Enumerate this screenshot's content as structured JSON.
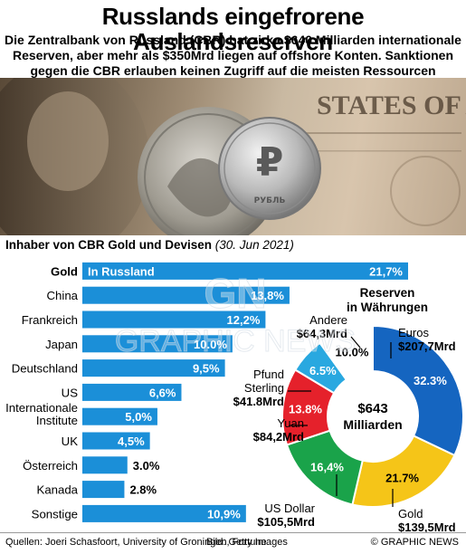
{
  "header": {
    "title": "Russlands eingefrorene Auslandsreserven",
    "subtitle": "Die Zentralbank von Russland (CBR) hat zirka $640 Milliarden internationale Reserven, aber mehr als $350Mrd liegen auf offshore Konten. Sanktionen gegen die CBR erlauben keinen Zugriff auf die meisten Ressourcen"
  },
  "photo": {
    "coin_label": "РУБЛЬ",
    "banknote_text": "STATES OF AMERICA"
  },
  "bar_section": {
    "heading": "Inhaber von CBR Gold und Devisen",
    "date": "(30. Jun 2021)"
  },
  "pie_section": {
    "title_line1": "Reserven",
    "title_line2": "in Währungen",
    "center_line1": "$643",
    "center_line2": "Milliarden"
  },
  "chart_data": [
    {
      "type": "bar",
      "title": "Inhaber von CBR Gold und Devisen",
      "subtitle": "(30. Jun 2021)",
      "orientation": "horizontal",
      "categories": [
        "Gold",
        "China",
        "Frankreich",
        "Japan",
        "Deutschland",
        "US",
        "Internationale Institute",
        "UK",
        "Österreich",
        "Kanada",
        "Sonstige"
      ],
      "values": [
        21.7,
        13.8,
        12.2,
        10.0,
        9.5,
        6.6,
        5.0,
        4.5,
        3.0,
        2.8,
        10.9
      ],
      "value_labels": [
        "21,7%",
        "13,8%",
        "12,2%",
        "10.0%",
        "9,5%",
        "6,6%",
        "5,0%",
        "4,5%",
        "3.0%",
        "2.8%",
        "10,9%"
      ],
      "bar_inner_label": "In Russland",
      "unit": "%",
      "color": "#1b8fd8"
    },
    {
      "type": "pie",
      "title": "Reserven in Währungen",
      "total": "$643 Milliarden",
      "slices": [
        {
          "name": "Euros",
          "amount": "$207,7Mrd",
          "value": 32.3,
          "label": "32.3%",
          "color": "#1565c0"
        },
        {
          "name": "Gold",
          "amount": "$139,5Mrd",
          "value": 21.7,
          "label": "21.7%",
          "color": "#f5c518"
        },
        {
          "name": "US Dollar",
          "amount": "$105,5Mrd",
          "value": 16.4,
          "label": "16,4%",
          "color": "#1aa34a"
        },
        {
          "name": "Yuan",
          "amount": "$84,2Mrd",
          "value": 13.8,
          "label": "13.8%",
          "color": "#e5212b"
        },
        {
          "name": "Pfund Sterling",
          "amount": "$41.8Mrd",
          "value": 6.5,
          "label": "6.5%",
          "color": "#29a8e0"
        },
        {
          "name": "Andere",
          "amount": "$64,3Mrd",
          "value": 10.0,
          "label": "10.0%",
          "color": "#ffffff"
        }
      ]
    }
  ],
  "footer": {
    "source": "Quellen: Joeri Schasfoort, University of Groningen, Fortune",
    "credit": "Bild: Getty Images",
    "brand": "© GRAPHIC NEWS"
  },
  "watermark": {
    "line1": "GN",
    "line2": "GRAPHIC NEWS"
  }
}
